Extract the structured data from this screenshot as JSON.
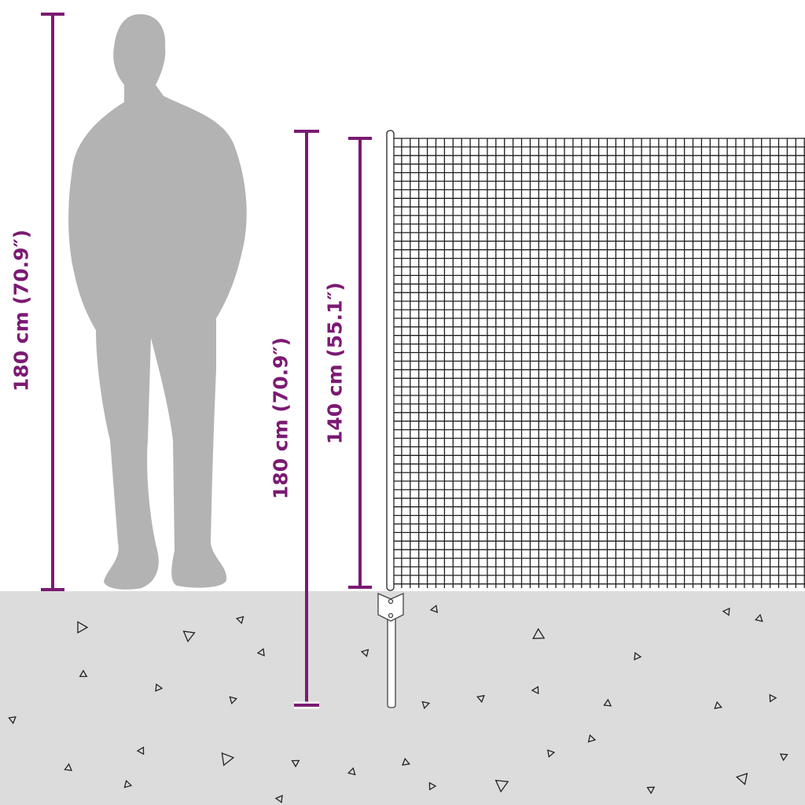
{
  "dimensions": {
    "person_height": "180 cm (70.9″)",
    "total_post_height": "180 cm (70.9″)",
    "net_height": "140 cm (55.1″)"
  },
  "colors": {
    "dimension_line": "#7b1a73",
    "ground": "#dcdcdc",
    "silhouette": "#b3b3b3",
    "mesh": "#1e1e1e"
  },
  "icons": {
    "person": "person-silhouette",
    "net": "fence-mesh",
    "post": "ground-spike-post"
  }
}
